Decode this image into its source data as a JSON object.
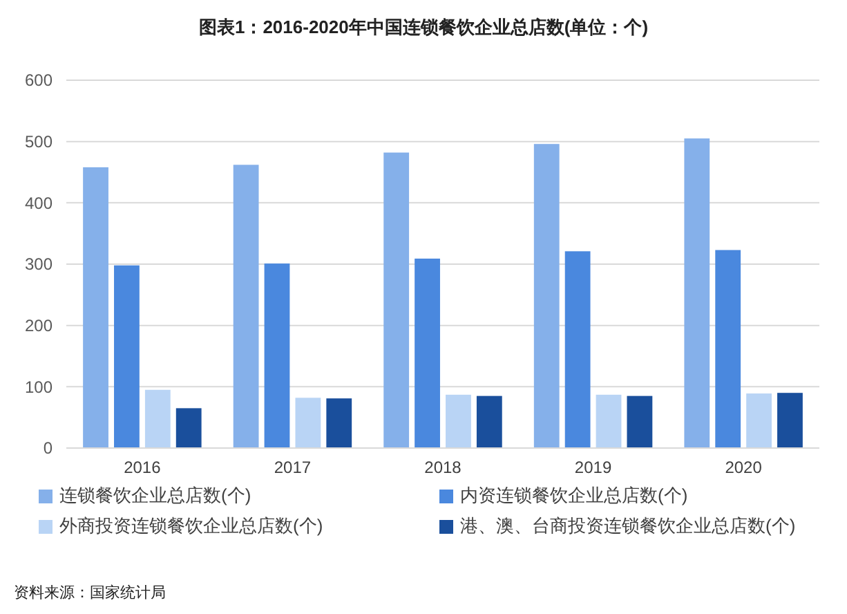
{
  "chart_data": {
    "type": "bar",
    "title": "图表1：2016-2020年中国连锁餐饮企业总店数(单位：个)",
    "categories": [
      "2016",
      "2017",
      "2018",
      "2019",
      "2020"
    ],
    "series": [
      {
        "name": "连锁餐饮企业总店数(个)",
        "color": "#85b0ea",
        "values": [
          458,
          462,
          482,
          496,
          505
        ]
      },
      {
        "name": "内资连锁餐饮企业总店数(个)",
        "color": "#4a88de",
        "values": [
          298,
          301,
          309,
          321,
          323
        ]
      },
      {
        "name": "外商投资连锁餐饮企业总店数(个)",
        "color": "#b9d4f5",
        "values": [
          95,
          82,
          87,
          87,
          89
        ]
      },
      {
        "name": "港、澳、台商投资连锁餐饮企业总店数(个)",
        "color": "#1a4f9c",
        "values": [
          65,
          81,
          85,
          85,
          90
        ]
      }
    ],
    "ylim": [
      0,
      600
    ],
    "yticks": [
      0,
      100,
      200,
      300,
      400,
      500,
      600
    ],
    "grid": "y",
    "legend": "bottom",
    "annotations": [
      "资料来源：国家统计局"
    ]
  }
}
